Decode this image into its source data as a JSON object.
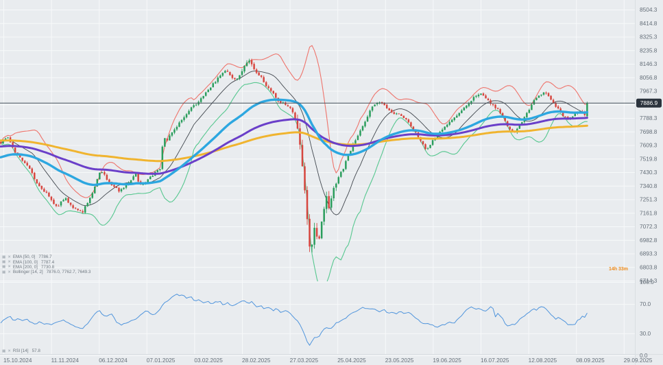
{
  "chart_data": {
    "type": "candlestick",
    "x_axis": {
      "labels": [
        "15.10.2024",
        "11.11.2024",
        "06.12.2024",
        "07.01.2025",
        "03.02.2025",
        "28.02.2025",
        "27.03.2025",
        "25.04.2025",
        "23.05.2025",
        "19.06.2025",
        "16.07.2025",
        "12.08.2025",
        "08.09.2025",
        "29.09.2025"
      ]
    },
    "price_axis": {
      "max": 8504.3,
      "min": 6714.3,
      "tick_step": 89.5,
      "ticks": [
        8504.3,
        8414.8,
        8325.3,
        8235.8,
        8146.3,
        8056.8,
        7967.3,
        7877.8,
        7788.3,
        7698.8,
        7609.3,
        7519.8,
        7430.3,
        7340.8,
        7251.3,
        7161.8,
        7072.3,
        6982.8,
        6893.3,
        6803.8,
        6714.3
      ]
    },
    "rsi_axis": {
      "ticks": [
        100.0,
        70.0,
        30.0,
        0.0
      ]
    },
    "current_price": 7886.9,
    "countdown": "14h 33m",
    "legend": {
      "items": [
        {
          "name": "ema50",
          "label": "EMA [50, 0]",
          "value": "7786.7"
        },
        {
          "name": "ema100",
          "label": "EMA [100, 0]",
          "value": "7787.4"
        },
        {
          "name": "ema200",
          "label": "EMA [200, 0]",
          "value": "7730.8"
        },
        {
          "name": "bollinger",
          "label": "Bollinger [14, 2]",
          "value": "7876.0, 7762.7, 7649.3"
        }
      ],
      "rsi": {
        "label": "RSI [14]",
        "value": "57.8"
      }
    },
    "indicators": [
      {
        "id": "ema50",
        "type": "EMA",
        "period": 50,
        "color": "#2da7e0"
      },
      {
        "id": "ema100",
        "type": "EMA",
        "period": 100,
        "color": "#6a3fc9"
      },
      {
        "id": "ema200",
        "type": "EMA",
        "period": 200,
        "color": "#f0b42f"
      },
      {
        "id": "bollinger",
        "type": "Bollinger",
        "period": 14,
        "deviation": 2,
        "upper_color": "#ee736b",
        "middle_color": "#41474e",
        "lower_color": "#56c78f"
      },
      {
        "id": "rsi",
        "type": "RSI",
        "period": 14,
        "color": "#4f94dc",
        "value": 57.8
      }
    ],
    "series": {
      "close_keypoints": [
        [
          1,
          7620
        ],
        [
          6,
          7650
        ],
        [
          12,
          7655
        ],
        [
          18,
          7600
        ],
        [
          24,
          7550
        ],
        [
          30,
          7520
        ],
        [
          36,
          7490
        ],
        [
          42,
          7470
        ],
        [
          48,
          7410
        ],
        [
          54,
          7360
        ],
        [
          60,
          7320
        ],
        [
          66,
          7300
        ],
        [
          72,
          7265
        ],
        [
          78,
          7220
        ],
        [
          84,
          7200
        ],
        [
          90,
          7245
        ],
        [
          96,
          7260
        ],
        [
          102,
          7215
        ],
        [
          108,
          7190
        ],
        [
          114,
          7180
        ],
        [
          120,
          7165
        ],
        [
          126,
          7215
        ],
        [
          132,
          7265
        ],
        [
          138,
          7330
        ],
        [
          144,
          7420
        ],
        [
          150,
          7440
        ],
        [
          156,
          7380
        ],
        [
          162,
          7345
        ],
        [
          168,
          7330
        ],
        [
          174,
          7305
        ],
        [
          180,
          7320
        ],
        [
          186,
          7350
        ],
        [
          192,
          7385
        ],
        [
          198,
          7420
        ],
        [
          204,
          7345
        ],
        [
          210,
          7350
        ],
        [
          216,
          7390
        ],
        [
          222,
          7410
        ],
        [
          228,
          7435
        ],
        [
          234,
          7450
        ],
        [
          238,
          7655
        ],
        [
          244,
          7645
        ],
        [
          250,
          7690
        ],
        [
          256,
          7720
        ],
        [
          262,
          7760
        ],
        [
          268,
          7790
        ],
        [
          274,
          7820
        ],
        [
          280,
          7860
        ],
        [
          286,
          7880
        ],
        [
          292,
          7910
        ],
        [
          298,
          7940
        ],
        [
          304,
          7975
        ],
        [
          310,
          8010
        ],
        [
          316,
          8040
        ],
        [
          322,
          8075
        ],
        [
          328,
          8100
        ],
        [
          334,
          8085
        ],
        [
          340,
          8050
        ],
        [
          346,
          8045
        ],
        [
          352,
          8090
        ],
        [
          358,
          8140
        ],
        [
          364,
          8175
        ],
        [
          370,
          8120
        ],
        [
          376,
          8080
        ],
        [
          382,
          8055
        ],
        [
          388,
          8000
        ],
        [
          394,
          7975
        ],
        [
          400,
          7945
        ],
        [
          406,
          7900
        ],
        [
          412,
          7890
        ],
        [
          418,
          7870
        ],
        [
          424,
          7850
        ],
        [
          430,
          7790
        ],
        [
          434,
          7720
        ],
        [
          438,
          7590
        ],
        [
          442,
          7430
        ],
        [
          446,
          7240
        ],
        [
          450,
          7000
        ],
        [
          453,
          6860
        ],
        [
          456,
          6980
        ],
        [
          459,
          7090
        ],
        [
          462,
          7000
        ],
        [
          465,
          6955
        ],
        [
          468,
          7080
        ],
        [
          471,
          7150
        ],
        [
          474,
          7230
        ],
        [
          477,
          7270
        ],
        [
          480,
          7200
        ],
        [
          483,
          7250
        ],
        [
          486,
          7310
        ],
        [
          490,
          7350
        ],
        [
          495,
          7420
        ],
        [
          500,
          7445
        ],
        [
          505,
          7510
        ],
        [
          510,
          7560
        ],
        [
          515,
          7620
        ],
        [
          520,
          7660
        ],
        [
          525,
          7700
        ],
        [
          530,
          7745
        ],
        [
          535,
          7790
        ],
        [
          540,
          7840
        ],
        [
          545,
          7870
        ],
        [
          550,
          7890
        ],
        [
          555,
          7900
        ],
        [
          560,
          7880
        ],
        [
          565,
          7850
        ],
        [
          570,
          7830
        ],
        [
          575,
          7810
        ],
        [
          580,
          7820
        ],
        [
          585,
          7800
        ],
        [
          590,
          7790
        ],
        [
          595,
          7770
        ],
        [
          600,
          7730
        ],
        [
          605,
          7700
        ],
        [
          610,
          7660
        ],
        [
          615,
          7630
        ],
        [
          620,
          7590
        ],
        [
          625,
          7580
        ],
        [
          630,
          7630
        ],
        [
          635,
          7660
        ],
        [
          640,
          7690
        ],
        [
          645,
          7710
        ],
        [
          650,
          7740
        ],
        [
          655,
          7760
        ],
        [
          660,
          7780
        ],
        [
          665,
          7800
        ],
        [
          670,
          7820
        ],
        [
          675,
          7840
        ],
        [
          680,
          7870
        ],
        [
          685,
          7890
        ],
        [
          690,
          7920
        ],
        [
          695,
          7940
        ],
        [
          700,
          7950
        ],
        [
          705,
          7930
        ],
        [
          710,
          7910
        ],
        [
          715,
          7890
        ],
        [
          720,
          7870
        ],
        [
          725,
          7850
        ],
        [
          730,
          7820
        ],
        [
          735,
          7780
        ],
        [
          740,
          7730
        ],
        [
          745,
          7700
        ],
        [
          750,
          7690
        ],
        [
          755,
          7720
        ],
        [
          760,
          7750
        ],
        [
          765,
          7790
        ],
        [
          770,
          7830
        ],
        [
          775,
          7870
        ],
        [
          780,
          7910
        ],
        [
          785,
          7940
        ],
        [
          790,
          7950
        ],
        [
          795,
          7960
        ],
        [
          800,
          7930
        ],
        [
          805,
          7900
        ],
        [
          810,
          7870
        ],
        [
          815,
          7840
        ],
        [
          820,
          7810
        ],
        [
          825,
          7790
        ],
        [
          830,
          7780
        ],
        [
          835,
          7800
        ],
        [
          840,
          7820
        ],
        [
          845,
          7830
        ],
        [
          850,
          7820
        ],
        [
          854,
          7810
        ],
        [
          857,
          7886.9
        ]
      ],
      "rsi_keypoints": [
        [
          1,
          44
        ],
        [
          8,
          50
        ],
        [
          14,
          54
        ],
        [
          20,
          48
        ],
        [
          26,
          49
        ],
        [
          32,
          47
        ],
        [
          40,
          50
        ],
        [
          46,
          44
        ],
        [
          52,
          43
        ],
        [
          58,
          45
        ],
        [
          64,
          43
        ],
        [
          70,
          44
        ],
        [
          76,
          42
        ],
        [
          82,
          44
        ],
        [
          88,
          47
        ],
        [
          94,
          48
        ],
        [
          100,
          44
        ],
        [
          108,
          40
        ],
        [
          114,
          38
        ],
        [
          120,
          36
        ],
        [
          126,
          42
        ],
        [
          132,
          48
        ],
        [
          138,
          56
        ],
        [
          144,
          63
        ],
        [
          148,
          58
        ],
        [
          152,
          53
        ],
        [
          158,
          55
        ],
        [
          164,
          56
        ],
        [
          170,
          46
        ],
        [
          176,
          42
        ],
        [
          182,
          43
        ],
        [
          188,
          46
        ],
        [
          194,
          48
        ],
        [
          200,
          50
        ],
        [
          206,
          55
        ],
        [
          210,
          60
        ],
        [
          213,
          62
        ],
        [
          218,
          57
        ],
        [
          222,
          55
        ],
        [
          226,
          57
        ],
        [
          230,
          60
        ],
        [
          235,
          65
        ],
        [
          240,
          72
        ],
        [
          246,
          76
        ],
        [
          252,
          80
        ],
        [
          258,
          83
        ],
        [
          262,
          80
        ],
        [
          266,
          83
        ],
        [
          272,
          77
        ],
        [
          278,
          80
        ],
        [
          284,
          74
        ],
        [
          290,
          77
        ],
        [
          296,
          71
        ],
        [
          302,
          74
        ],
        [
          308,
          69
        ],
        [
          314,
          72
        ],
        [
          320,
          74
        ],
        [
          326,
          69
        ],
        [
          332,
          72
        ],
        [
          338,
          66
        ],
        [
          344,
          69
        ],
        [
          350,
          72
        ],
        [
          356,
          74
        ],
        [
          362,
          70
        ],
        [
          368,
          73
        ],
        [
          374,
          66
        ],
        [
          380,
          69
        ],
        [
          386,
          63
        ],
        [
          392,
          66
        ],
        [
          398,
          61
        ],
        [
          404,
          64
        ],
        [
          410,
          59
        ],
        [
          416,
          62
        ],
        [
          422,
          57
        ],
        [
          428,
          53
        ],
        [
          434,
          46
        ],
        [
          440,
          38
        ],
        [
          445,
          27
        ],
        [
          449,
          17
        ],
        [
          452,
          13
        ],
        [
          456,
          20
        ],
        [
          460,
          26
        ],
        [
          464,
          22
        ],
        [
          468,
          30
        ],
        [
          472,
          35
        ],
        [
          477,
          39
        ],
        [
          482,
          36
        ],
        [
          488,
          42
        ],
        [
          494,
          46
        ],
        [
          500,
          48
        ],
        [
          506,
          52
        ],
        [
          512,
          56
        ],
        [
          518,
          60
        ],
        [
          524,
          63
        ],
        [
          530,
          65
        ],
        [
          536,
          63
        ],
        [
          542,
          65
        ],
        [
          548,
          62
        ],
        [
          554,
          60
        ],
        [
          560,
          62
        ],
        [
          566,
          58
        ],
        [
          572,
          60
        ],
        [
          578,
          57
        ],
        [
          584,
          59
        ],
        [
          590,
          57
        ],
        [
          596,
          59
        ],
        [
          602,
          55
        ],
        [
          608,
          50
        ],
        [
          614,
          45
        ],
        [
          620,
          42
        ],
        [
          626,
          44
        ],
        [
          632,
          40
        ],
        [
          638,
          38
        ],
        [
          644,
          43
        ],
        [
          650,
          41
        ],
        [
          656,
          46
        ],
        [
          662,
          44
        ],
        [
          668,
          50
        ],
        [
          674,
          55
        ],
        [
          680,
          62
        ],
        [
          686,
          67
        ],
        [
          692,
          63
        ],
        [
          698,
          65
        ],
        [
          704,
          62
        ],
        [
          710,
          60
        ],
        [
          714,
          64
        ],
        [
          718,
          68
        ],
        [
          722,
          52
        ],
        [
          726,
          57
        ],
        [
          730,
          54
        ],
        [
          734,
          48
        ],
        [
          738,
          42
        ],
        [
          742,
          38
        ],
        [
          746,
          43
        ],
        [
          750,
          41
        ],
        [
          754,
          45
        ],
        [
          758,
          49
        ],
        [
          762,
          52
        ],
        [
          766,
          55
        ],
        [
          770,
          58
        ],
        [
          774,
          61
        ],
        [
          778,
          64
        ],
        [
          782,
          62
        ],
        [
          786,
          65
        ],
        [
          790,
          67
        ],
        [
          794,
          66
        ],
        [
          798,
          62
        ],
        [
          802,
          58
        ],
        [
          806,
          53
        ],
        [
          810,
          50
        ],
        [
          814,
          52
        ],
        [
          818,
          49
        ],
        [
          822,
          47
        ],
        [
          826,
          45
        ],
        [
          830,
          41
        ],
        [
          834,
          43
        ],
        [
          838,
          42
        ],
        [
          842,
          47
        ],
        [
          846,
          50
        ],
        [
          850,
          54
        ],
        [
          853,
          52
        ],
        [
          856,
          57.8
        ]
      ]
    },
    "colors": {
      "background": "#e9ecef",
      "grid": "#f7f9fa",
      "bull": "#2a9d5c",
      "bear": "#d7453e",
      "axis_text": "#646e78",
      "price_line": "#49525b",
      "price_badge_bg": "#2b333d",
      "price_badge_text": "#ffffff",
      "countdown": "#ef8b1a"
    }
  }
}
